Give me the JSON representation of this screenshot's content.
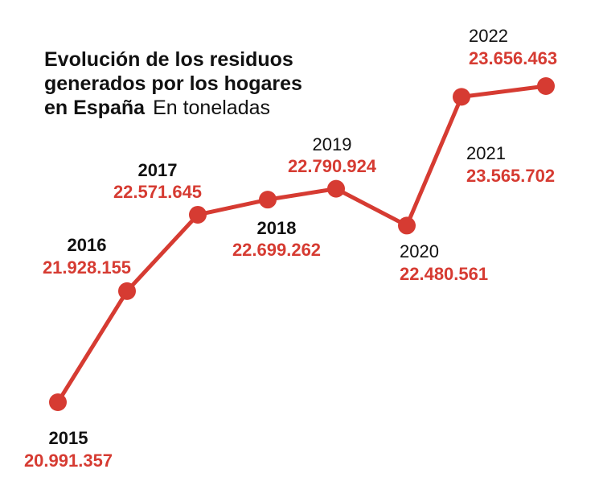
{
  "title": {
    "line1": "Evolución de los residuos",
    "line2": "generados por los hogares",
    "line3_bold": "en España",
    "line3_unit": "En toneladas"
  },
  "colors": {
    "accent": "#d63b32",
    "text": "#111111",
    "background": "#ffffff"
  },
  "chart_data": {
    "type": "line",
    "title": "Evolución de los residuos generados por los hogares en España",
    "ylabel": "En toneladas",
    "x": [
      "2015",
      "2016",
      "2017",
      "2018",
      "2019",
      "2020",
      "2021",
      "2022"
    ],
    "y": [
      20991357,
      21928155,
      22571645,
      22699262,
      22790924,
      22480561,
      23565702,
      23656463
    ],
    "data_labels": [
      "20.991.357",
      "21.928.155",
      "22.571.645",
      "22.699.262",
      "22.790.924",
      "22.480.561",
      "23.565.702",
      "23.656.463"
    ],
    "grid": false,
    "legend": "none"
  }
}
